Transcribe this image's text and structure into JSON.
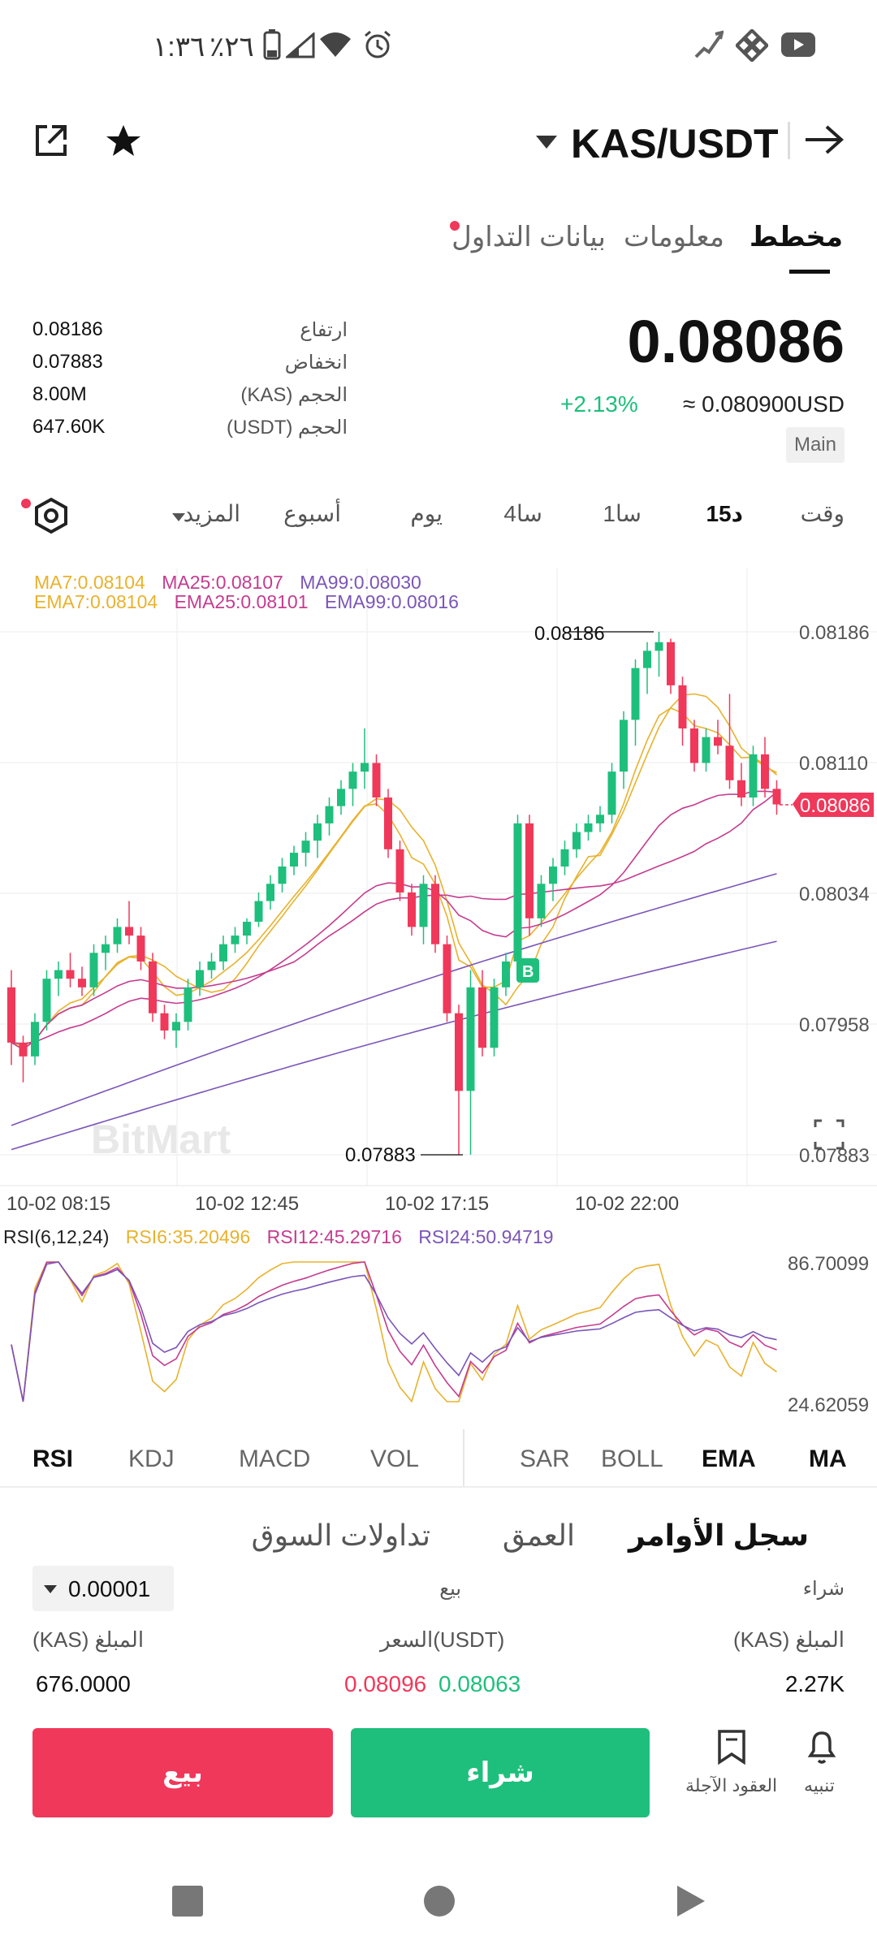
{
  "status_bar": {
    "time": "١:٣٦",
    "battery": "٪٢٦"
  },
  "header": {
    "pair": "KAS/USDT"
  },
  "tabs": [
    {
      "label": "مخطط",
      "active": true
    },
    {
      "label": "معلومات",
      "active": false
    },
    {
      "label": "بيانات التداول",
      "active": false
    }
  ],
  "price": {
    "last": "0.08086",
    "change": "+2.13%",
    "usd": "≈ 0.080900USD",
    "badge": "Main"
  },
  "stats": {
    "high_label": "ارتفاع",
    "high": "0.08186",
    "low_label": "انخفاض",
    "low": "0.07883",
    "vol_kas_label": "الحجم (KAS)",
    "vol_kas": "8.00M",
    "vol_usdt_label": "الحجم (USDT)",
    "vol_usdt": "647.60K"
  },
  "timeframes": [
    "وقت",
    "15د",
    "1سا",
    "4سا",
    "يوم",
    "أسبوع",
    "المزيد"
  ],
  "active_timeframe": "15د",
  "chart": {
    "ma_line": {
      "ma7": "MA7:0.08104",
      "ma25": "MA25:0.08107",
      "ma99": "MA99:0.08030"
    },
    "ema_line": {
      "ema7": "EMA7:0.08104",
      "ema25": "EMA25:0.08101",
      "ema99": "EMA99:0.08016"
    },
    "y_ticks": [
      "0.08186",
      "0.08110",
      "0.08034",
      "0.07958",
      "0.07883"
    ],
    "current_price_tag": "0.08086",
    "high_marker": "0.08186",
    "low_marker": "0.07883",
    "x_ticks": [
      "10-02 08:15",
      "10-02 12:45",
      "10-02 17:15",
      "10-02 22:00"
    ],
    "watermark": "BitMart",
    "buy_marker": "B",
    "colors": {
      "up": "#1ebf7c",
      "down": "#f0385a",
      "ma7": "#e8b22d",
      "ma25": "#c53c8f",
      "ma99": "#7b55b8"
    }
  },
  "rsi": {
    "title": "RSI(6,12,24)",
    "rsi6": "RSI6:35.20496",
    "rsi12": "RSI12:45.29716",
    "rsi24": "RSI24:50.94719",
    "top": "86.70099",
    "bottom": "24.62059"
  },
  "indicators_left": [
    "RSI",
    "KDJ",
    "MACD",
    "VOL"
  ],
  "indicators_right": [
    "SAR",
    "BOLL",
    "EMA",
    "MA"
  ],
  "book": {
    "tabs": [
      "سجل الأوامر",
      "العمق",
      "تداولات السوق"
    ],
    "buy": "شراء",
    "sell": "بيع",
    "precision": "0.00001",
    "amount_kas_right": "المبلغ (KAS)",
    "price_usdt": "السعر(USDT)",
    "amount_kas_left": "المبلغ (KAS)",
    "buy_amount": "2.27K",
    "buy_price": "0.08063",
    "sell_price": "0.08096",
    "sell_amount": "676.0000"
  },
  "actions": {
    "alert": "تنبيه",
    "futures": "العقود الآجلة",
    "buy": "شراء",
    "sell": "بيع"
  },
  "ohlc": [
    [
      0.0798,
      0.0799,
      0.07935,
      0.07948
    ],
    [
      0.07948,
      0.07952,
      0.07925,
      0.0794
    ],
    [
      0.0794,
      0.07965,
      0.07935,
      0.0796
    ],
    [
      0.0796,
      0.0799,
      0.07955,
      0.07985
    ],
    [
      0.07985,
      0.07995,
      0.07975,
      0.0799
    ],
    [
      0.0799,
      0.08,
      0.0798,
      0.07985
    ],
    [
      0.07985,
      0.07992,
      0.07975,
      0.0798
    ],
    [
      0.0798,
      0.08005,
      0.07975,
      0.08
    ],
    [
      0.08,
      0.0801,
      0.0799,
      0.08005
    ],
    [
      0.08005,
      0.0802,
      0.08,
      0.08015
    ],
    [
      0.08015,
      0.0803,
      0.08005,
      0.0801
    ],
    [
      0.0801,
      0.08015,
      0.0799,
      0.07995
    ],
    [
      0.07995,
      0.08,
      0.0796,
      0.07965
    ],
    [
      0.07965,
      0.0797,
      0.0795,
      0.07955
    ],
    [
      0.07955,
      0.07965,
      0.07945,
      0.0796
    ],
    [
      0.0796,
      0.07985,
      0.07955,
      0.0798
    ],
    [
      0.0798,
      0.07995,
      0.07975,
      0.0799
    ],
    [
      0.0799,
      0.08,
      0.07985,
      0.07995
    ],
    [
      0.07995,
      0.0801,
      0.0799,
      0.08005
    ],
    [
      0.08005,
      0.08015,
      0.08,
      0.0801
    ],
    [
      0.0801,
      0.0802,
      0.08005,
      0.08018
    ],
    [
      0.08018,
      0.08035,
      0.08015,
      0.0803
    ],
    [
      0.0803,
      0.08045,
      0.08025,
      0.0804
    ],
    [
      0.0804,
      0.08055,
      0.08035,
      0.0805
    ],
    [
      0.0805,
      0.08062,
      0.08045,
      0.08058
    ],
    [
      0.08058,
      0.0807,
      0.0805,
      0.08065
    ],
    [
      0.08065,
      0.0808,
      0.08055,
      0.08075
    ],
    [
      0.08075,
      0.0809,
      0.08068,
      0.08085
    ],
    [
      0.08085,
      0.081,
      0.0808,
      0.08095
    ],
    [
      0.08095,
      0.0811,
      0.08085,
      0.08105
    ],
    [
      0.08105,
      0.0813,
      0.08095,
      0.0811
    ],
    [
      0.0811,
      0.08115,
      0.08085,
      0.0809
    ],
    [
      0.0809,
      0.08095,
      0.08055,
      0.0806
    ],
    [
      0.0806,
      0.08065,
      0.0803,
      0.08035
    ],
    [
      0.08035,
      0.0804,
      0.0801,
      0.08015
    ],
    [
      0.08015,
      0.08045,
      0.08005,
      0.0804
    ],
    [
      0.0804,
      0.08045,
      0.08,
      0.08005
    ],
    [
      0.08005,
      0.0801,
      0.0796,
      0.07965
    ],
    [
      0.07965,
      0.0797,
      0.07883,
      0.0792
    ],
    [
      0.0792,
      0.0799,
      0.07883,
      0.0798
    ],
    [
      0.0798,
      0.0799,
      0.0794,
      0.07945
    ],
    [
      0.07945,
      0.07985,
      0.0794,
      0.0798
    ],
    [
      0.0798,
      0.08,
      0.07975,
      0.07995
    ],
    [
      0.07995,
      0.0808,
      0.0799,
      0.08075
    ],
    [
      0.08075,
      0.0808,
      0.0801,
      0.0802
    ],
    [
      0.0802,
      0.08045,
      0.08015,
      0.0804
    ],
    [
      0.0804,
      0.08055,
      0.0803,
      0.0805
    ],
    [
      0.0805,
      0.08065,
      0.08045,
      0.0806
    ],
    [
      0.0806,
      0.08075,
      0.08055,
      0.0807
    ],
    [
      0.0807,
      0.0808,
      0.08065,
      0.08075
    ],
    [
      0.08075,
      0.08085,
      0.0807,
      0.0808
    ],
    [
      0.0808,
      0.0811,
      0.08075,
      0.08105
    ],
    [
      0.08105,
      0.0814,
      0.08095,
      0.08135
    ],
    [
      0.08135,
      0.0817,
      0.0812,
      0.08165
    ],
    [
      0.08165,
      0.0818,
      0.0815,
      0.08175
    ],
    [
      0.08175,
      0.08186,
      0.0816,
      0.0818
    ],
    [
      0.0818,
      0.08182,
      0.0815,
      0.08155
    ],
    [
      0.08155,
      0.0816,
      0.0812,
      0.0813
    ],
    [
      0.0813,
      0.08135,
      0.08105,
      0.0811
    ],
    [
      0.0811,
      0.0813,
      0.08105,
      0.08125
    ],
    [
      0.08125,
      0.08135,
      0.08115,
      0.0812
    ],
    [
      0.0812,
      0.0815,
      0.08095,
      0.081
    ],
    [
      0.081,
      0.0811,
      0.08085,
      0.0809
    ],
    [
      0.0809,
      0.0812,
      0.08085,
      0.08115
    ],
    [
      0.08115,
      0.08125,
      0.0809,
      0.08095
    ],
    [
      0.08095,
      0.081,
      0.0808,
      0.08086
    ]
  ]
}
